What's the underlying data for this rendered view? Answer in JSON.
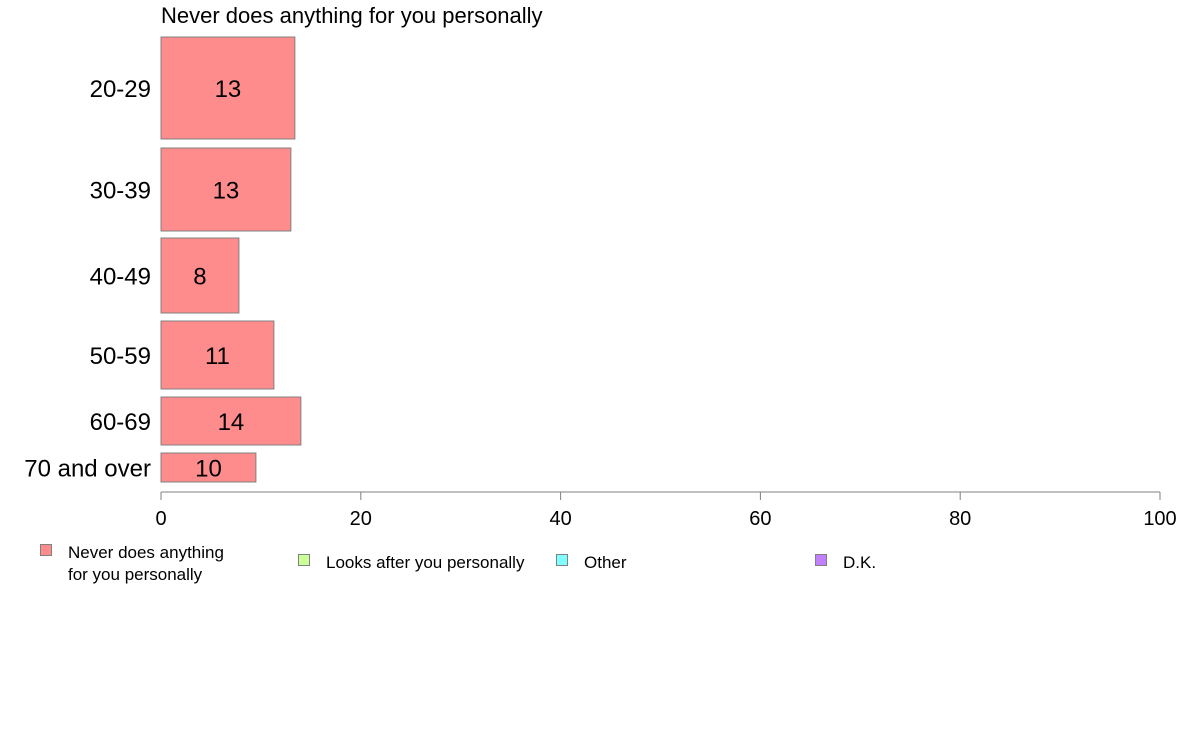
{
  "chart_data": {
    "type": "bar",
    "orientation": "horizontal",
    "title": "Never does anything for you personally",
    "categories": [
      "20-29",
      "30-39",
      "40-49",
      "50-59",
      "60-69",
      "70 and over"
    ],
    "series": [
      {
        "name": "Never does anything for you personally",
        "values": [
          13.4,
          13.0,
          7.8,
          11.3,
          14.0,
          9.5
        ],
        "labels": [
          "13",
          "13",
          "8",
          "11",
          "14",
          "10"
        ]
      }
    ],
    "xlim": [
      0,
      100
    ],
    "xticks": [
      "0",
      "20",
      "40",
      "60",
      "80",
      "100"
    ],
    "xlabel": "",
    "ylabel": "",
    "grid": false,
    "legend_position": "bottom",
    "bar_color": "#ff8c8c",
    "legend": [
      {
        "label": "Never does anything\nfor you personally",
        "color": "#ff8c8c"
      },
      {
        "label": "Looks after you personally",
        "color": "#ccff99"
      },
      {
        "label": "Other",
        "color": "#80ffff"
      },
      {
        "label": "D.K.",
        "color": "#c080ff"
      }
    ]
  }
}
